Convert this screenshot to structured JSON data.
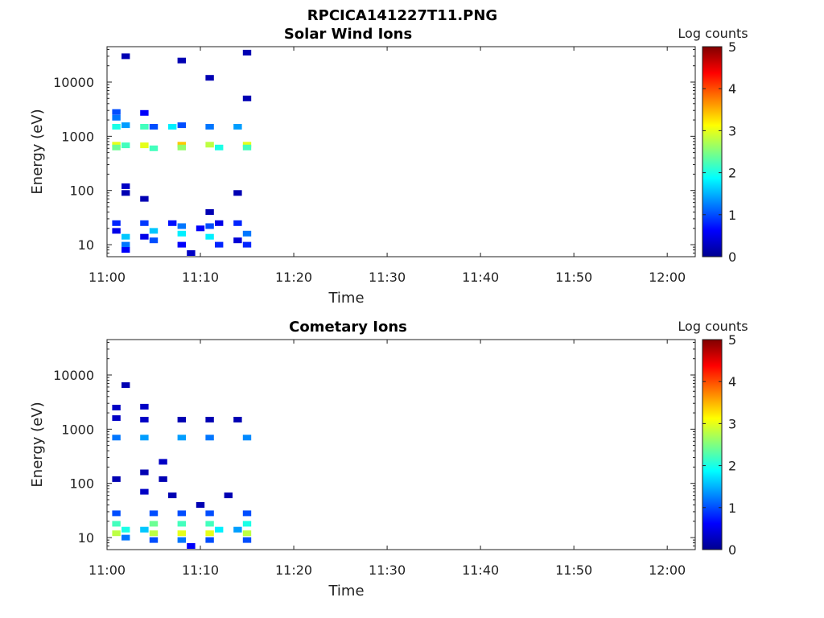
{
  "figure": {
    "title": "RPCICA141227T11.PNG"
  },
  "colormap": {
    "name": "jet",
    "stops": [
      "#00008f",
      "#0000ff",
      "#0080ff",
      "#00ffff",
      "#80ff80",
      "#ffff00",
      "#ff8000",
      "#ff0000",
      "#800000"
    ]
  },
  "chart_data": [
    {
      "type": "heatmap",
      "title": "Solar Wind Ions",
      "xlabel": "Time",
      "ylabel": "Energy (eV)",
      "x_scale": "time",
      "xlim": [
        "11:00",
        "12:03"
      ],
      "xticks": [
        "11:00",
        "11:10",
        "11:20",
        "11:30",
        "11:40",
        "11:50",
        "12:00"
      ],
      "y_scale": "log",
      "ylim": [
        6,
        45000
      ],
      "yticks": [
        10,
        100,
        1000,
        10000
      ],
      "ytick_labels": [
        "10",
        "100",
        "1000",
        "10000"
      ],
      "colorbar": {
        "label": "Log counts",
        "range": [
          0,
          5
        ],
        "ticks": [
          "0",
          "1",
          "2",
          "3",
          "4",
          "5"
        ]
      },
      "points": [
        {
          "t": "11:01",
          "e": 700,
          "v": 3.0
        },
        {
          "t": "11:01",
          "e": 620,
          "v": 2.4
        },
        {
          "t": "11:01",
          "e": 1500,
          "v": 2.0
        },
        {
          "t": "11:01",
          "e": 2200,
          "v": 1.2
        },
        {
          "t": "11:01",
          "e": 2800,
          "v": 1.0
        },
        {
          "t": "11:02",
          "e": 680,
          "v": 2.2
        },
        {
          "t": "11:02",
          "e": 1600,
          "v": 1.4
        },
        {
          "t": "11:02",
          "e": 30000,
          "v": 0.2
        },
        {
          "t": "11:02",
          "e": 120,
          "v": 0.3
        },
        {
          "t": "11:02",
          "e": 90,
          "v": 0.2
        },
        {
          "t": "11:01",
          "e": 25,
          "v": 0.8
        },
        {
          "t": "11:01",
          "e": 18,
          "v": 0.5
        },
        {
          "t": "11:02",
          "e": 14,
          "v": 1.6
        },
        {
          "t": "11:02",
          "e": 10,
          "v": 1.2
        },
        {
          "t": "11:02",
          "e": 8,
          "v": 0.6
        },
        {
          "t": "11:04",
          "e": 680,
          "v": 3.0
        },
        {
          "t": "11:05",
          "e": 600,
          "v": 2.2
        },
        {
          "t": "11:04",
          "e": 1500,
          "v": 2.2
        },
        {
          "t": "11:04",
          "e": 2700,
          "v": 0.6
        },
        {
          "t": "11:05",
          "e": 1500,
          "v": 1.0
        },
        {
          "t": "11:04",
          "e": 25,
          "v": 0.9
        },
        {
          "t": "11:05",
          "e": 18,
          "v": 1.6
        },
        {
          "t": "11:05",
          "e": 12,
          "v": 1.0
        },
        {
          "t": "11:04",
          "e": 14,
          "v": 0.5
        },
        {
          "t": "11:04",
          "e": 70,
          "v": 0.2
        },
        {
          "t": "11:08",
          "e": 700,
          "v": 3.4
        },
        {
          "t": "11:08",
          "e": 620,
          "v": 2.6
        },
        {
          "t": "11:07",
          "e": 1500,
          "v": 1.8
        },
        {
          "t": "11:08",
          "e": 1600,
          "v": 1.0
        },
        {
          "t": "11:08",
          "e": 25000,
          "v": 0.2
        },
        {
          "t": "11:08",
          "e": 22,
          "v": 1.2
        },
        {
          "t": "11:08",
          "e": 16,
          "v": 1.8
        },
        {
          "t": "11:08",
          "e": 10,
          "v": 0.6
        },
        {
          "t": "11:07",
          "e": 25,
          "v": 0.7
        },
        {
          "t": "11:09",
          "e": 7,
          "v": 0.3
        },
        {
          "t": "11:11",
          "e": 700,
          "v": 2.8
        },
        {
          "t": "11:12",
          "e": 620,
          "v": 2.0
        },
        {
          "t": "11:11",
          "e": 1500,
          "v": 1.2
        },
        {
          "t": "11:11",
          "e": 12000,
          "v": 0.2
        },
        {
          "t": "11:11",
          "e": 40,
          "v": 0.2
        },
        {
          "t": "11:11",
          "e": 22,
          "v": 1.0
        },
        {
          "t": "11:11",
          "e": 14,
          "v": 1.8
        },
        {
          "t": "11:12",
          "e": 10,
          "v": 0.8
        },
        {
          "t": "11:10",
          "e": 20,
          "v": 0.6
        },
        {
          "t": "11:12",
          "e": 25,
          "v": 0.5
        },
        {
          "t": "11:15",
          "e": 700,
          "v": 3.0
        },
        {
          "t": "11:15",
          "e": 620,
          "v": 2.2
        },
        {
          "t": "11:14",
          "e": 1500,
          "v": 1.4
        },
        {
          "t": "11:15",
          "e": 35000,
          "v": 0.2
        },
        {
          "t": "11:15",
          "e": 5000,
          "v": 0.2
        },
        {
          "t": "11:14",
          "e": 25,
          "v": 0.8
        },
        {
          "t": "11:15",
          "e": 16,
          "v": 1.2
        },
        {
          "t": "11:15",
          "e": 10,
          "v": 0.8
        },
        {
          "t": "11:14",
          "e": 12,
          "v": 0.4
        },
        {
          "t": "11:14",
          "e": 90,
          "v": 0.2
        }
      ]
    },
    {
      "type": "heatmap",
      "title": "Cometary Ions",
      "xlabel": "Time",
      "ylabel": "Energy (eV)",
      "x_scale": "time",
      "xlim": [
        "11:00",
        "12:03"
      ],
      "xticks": [
        "11:00",
        "11:10",
        "11:20",
        "11:30",
        "11:40",
        "11:50",
        "12:00"
      ],
      "y_scale": "log",
      "ylim": [
        6,
        45000
      ],
      "yticks": [
        10,
        100,
        1000,
        10000
      ],
      "ytick_labels": [
        "10",
        "100",
        "1000",
        "10000"
      ],
      "colorbar": {
        "label": "Log counts",
        "range": [
          0,
          5
        ],
        "ticks": [
          "0",
          "1",
          "2",
          "3",
          "4",
          "5"
        ]
      },
      "points": [
        {
          "t": "11:01",
          "e": 700,
          "v": 1.2
        },
        {
          "t": "11:01",
          "e": 2500,
          "v": 0.3
        },
        {
          "t": "11:01",
          "e": 1600,
          "v": 0.3
        },
        {
          "t": "11:02",
          "e": 6500,
          "v": 0.2
        },
        {
          "t": "11:01",
          "e": 120,
          "v": 0.2
        },
        {
          "t": "11:01",
          "e": 28,
          "v": 1.0
        },
        {
          "t": "11:01",
          "e": 18,
          "v": 2.2
        },
        {
          "t": "11:01",
          "e": 12,
          "v": 2.8
        },
        {
          "t": "11:02",
          "e": 14,
          "v": 2.0
        },
        {
          "t": "11:02",
          "e": 10,
          "v": 1.2
        },
        {
          "t": "11:04",
          "e": 700,
          "v": 1.4
        },
        {
          "t": "11:04",
          "e": 2600,
          "v": 0.3
        },
        {
          "t": "11:04",
          "e": 1500,
          "v": 0.3
        },
        {
          "t": "11:04",
          "e": 160,
          "v": 0.2
        },
        {
          "t": "11:04",
          "e": 70,
          "v": 0.3
        },
        {
          "t": "11:05",
          "e": 28,
          "v": 1.0
        },
        {
          "t": "11:05",
          "e": 18,
          "v": 2.4
        },
        {
          "t": "11:05",
          "e": 12,
          "v": 2.8
        },
        {
          "t": "11:04",
          "e": 14,
          "v": 1.6
        },
        {
          "t": "11:05",
          "e": 9,
          "v": 1.0
        },
        {
          "t": "11:08",
          "e": 700,
          "v": 1.4
        },
        {
          "t": "11:08",
          "e": 1500,
          "v": 0.2
        },
        {
          "t": "11:06",
          "e": 250,
          "v": 0.3
        },
        {
          "t": "11:06",
          "e": 120,
          "v": 0.2
        },
        {
          "t": "11:07",
          "e": 60,
          "v": 0.2
        },
        {
          "t": "11:08",
          "e": 28,
          "v": 1.0
        },
        {
          "t": "11:08",
          "e": 18,
          "v": 2.2
        },
        {
          "t": "11:08",
          "e": 12,
          "v": 3.0
        },
        {
          "t": "11:08",
          "e": 9,
          "v": 1.2
        },
        {
          "t": "11:09",
          "e": 7,
          "v": 0.6
        },
        {
          "t": "11:11",
          "e": 700,
          "v": 1.2
        },
        {
          "t": "11:11",
          "e": 1500,
          "v": 0.2
        },
        {
          "t": "11:10",
          "e": 40,
          "v": 0.2
        },
        {
          "t": "11:11",
          "e": 28,
          "v": 1.0
        },
        {
          "t": "11:11",
          "e": 18,
          "v": 2.2
        },
        {
          "t": "11:11",
          "e": 12,
          "v": 3.0
        },
        {
          "t": "11:12",
          "e": 14,
          "v": 1.8
        },
        {
          "t": "11:11",
          "e": 9,
          "v": 1.0
        },
        {
          "t": "11:15",
          "e": 700,
          "v": 1.3
        },
        {
          "t": "11:14",
          "e": 1500,
          "v": 0.2
        },
        {
          "t": "11:13",
          "e": 60,
          "v": 0.2
        },
        {
          "t": "11:15",
          "e": 28,
          "v": 1.0
        },
        {
          "t": "11:15",
          "e": 18,
          "v": 2.0
        },
        {
          "t": "11:15",
          "e": 12,
          "v": 2.8
        },
        {
          "t": "11:14",
          "e": 14,
          "v": 1.4
        },
        {
          "t": "11:15",
          "e": 9,
          "v": 1.0
        }
      ]
    }
  ]
}
